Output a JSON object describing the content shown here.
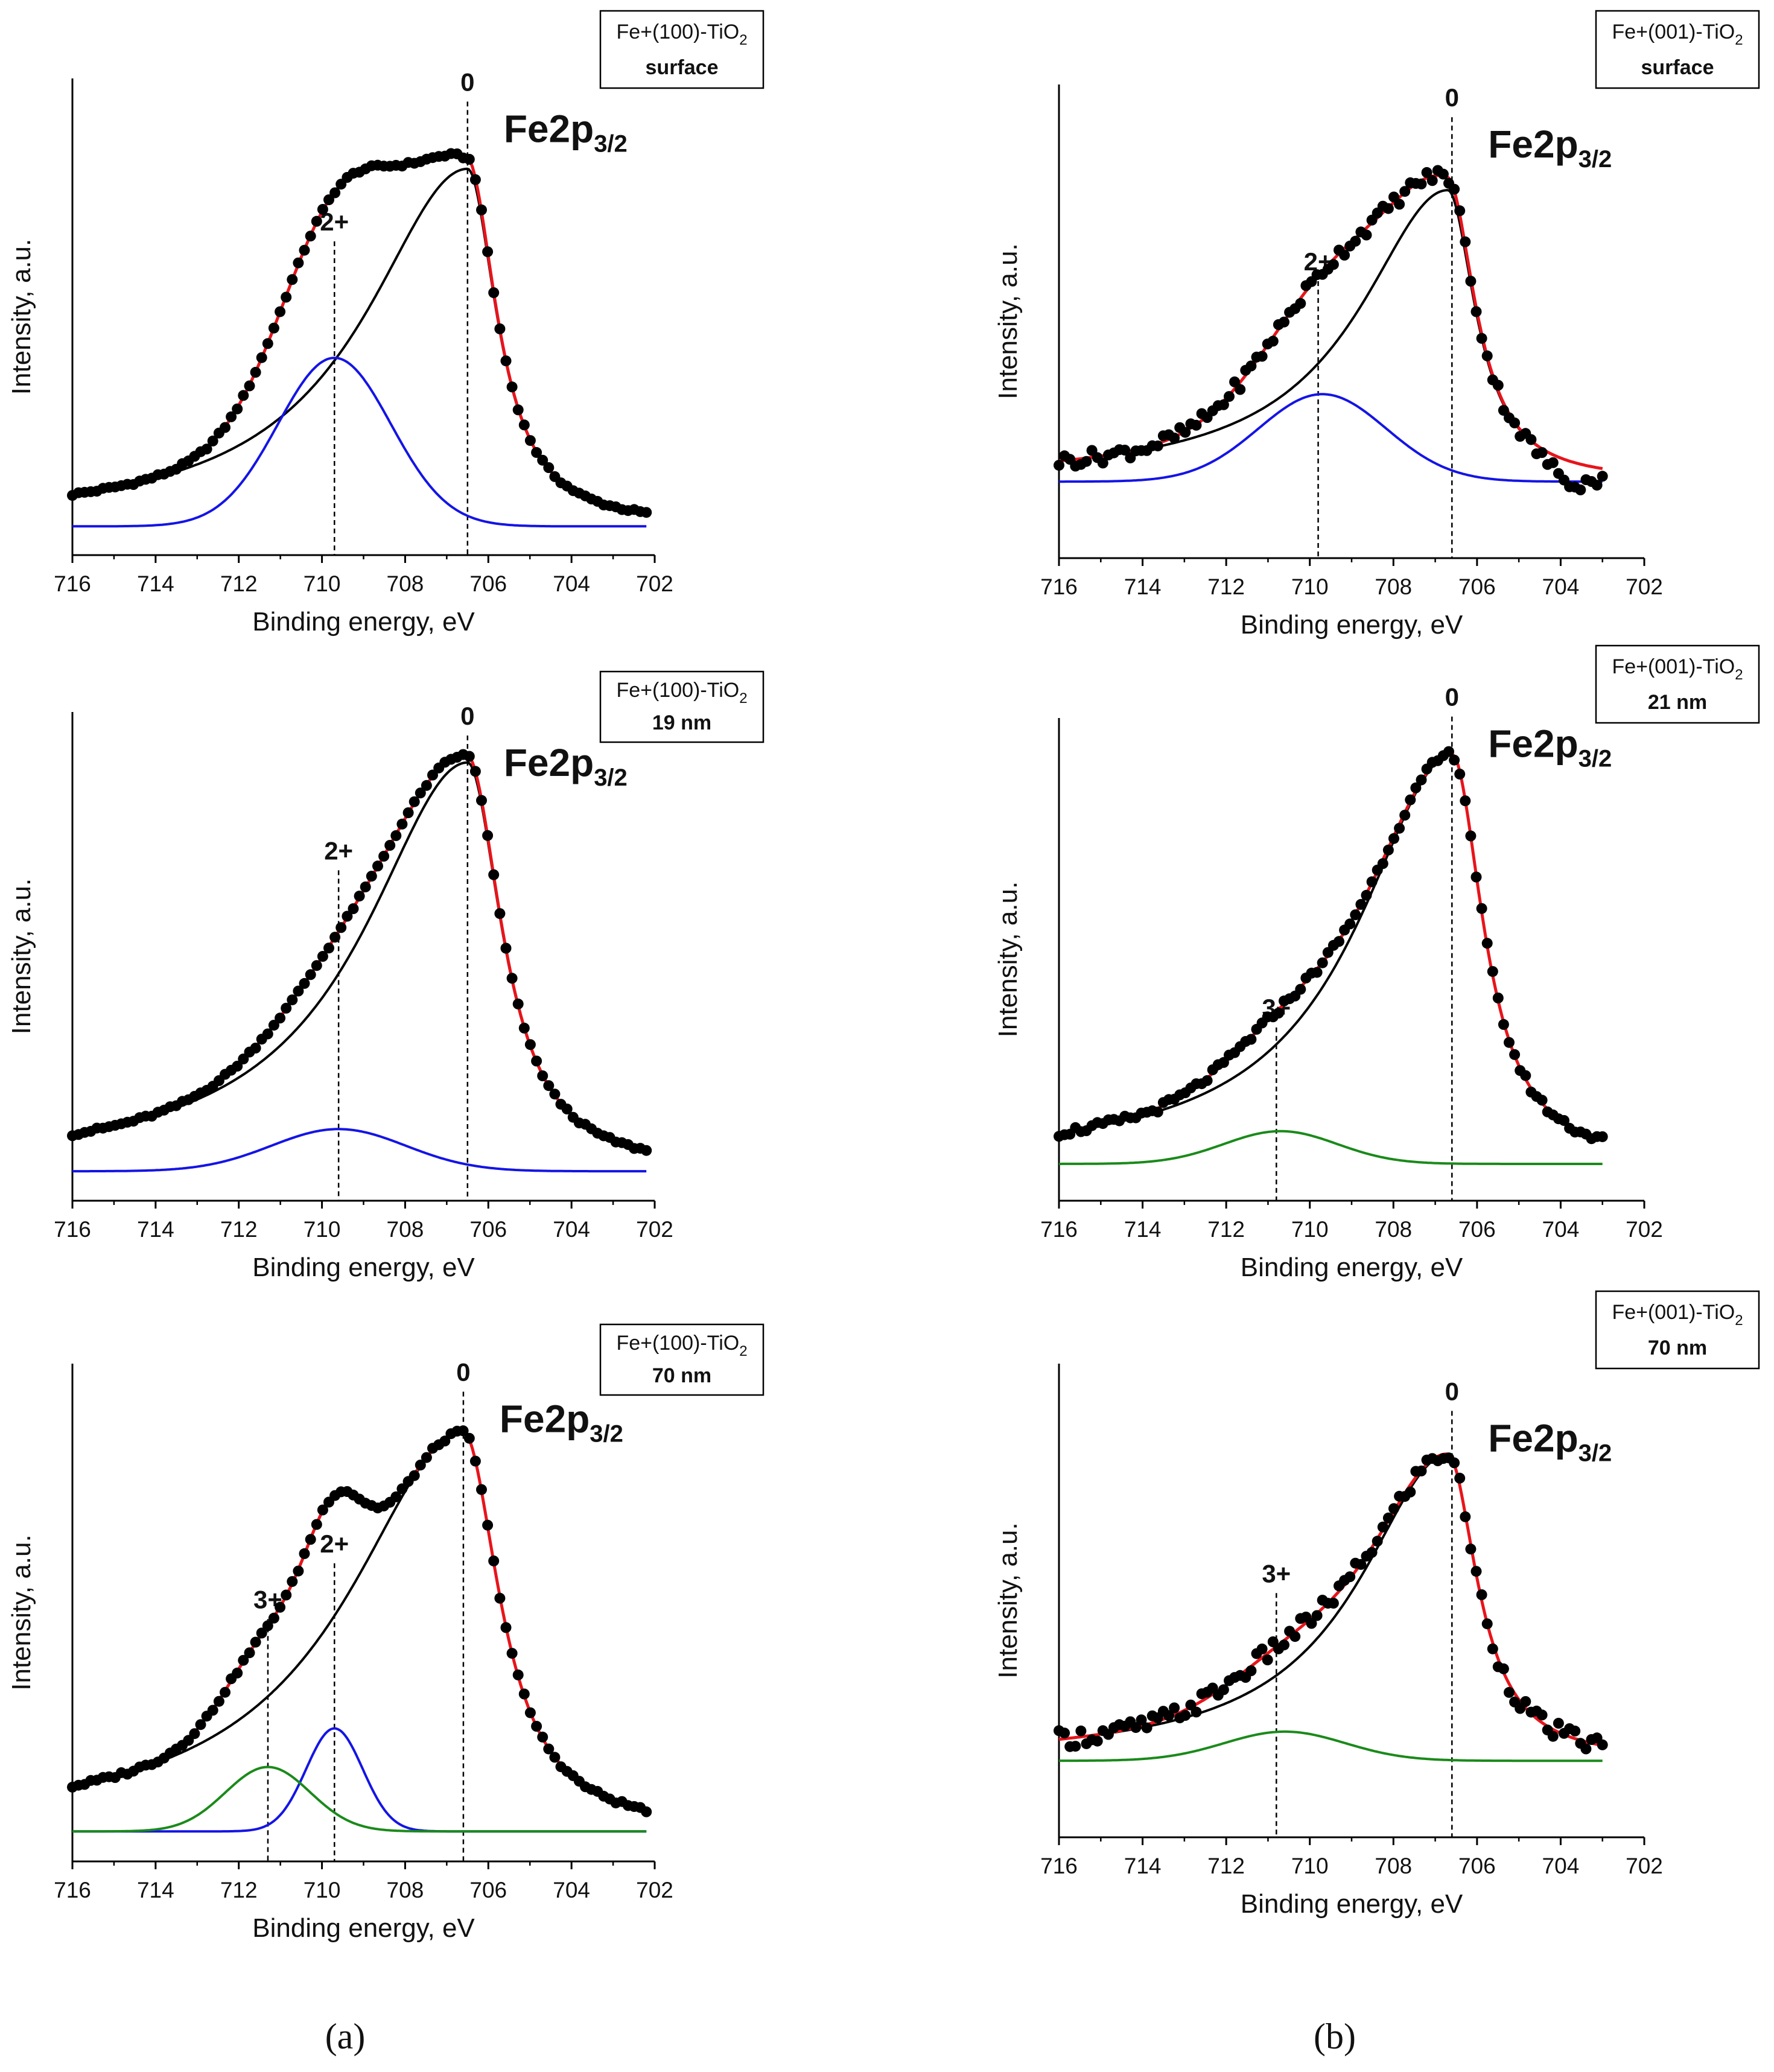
{
  "figure": {
    "captions": [
      "(a)",
      "(b)"
    ],
    "colors": {
      "data_points": "#000000",
      "envelope": "#e8141b",
      "fe0_component": "#000000",
      "fe2_component": "#1414e6",
      "fe3_component": "#1a8a1a",
      "marker_line": "#000000"
    }
  },
  "chart_data": [
    {
      "type": "scatter",
      "panel": "a",
      "sample_title": "Fe+(100)-TiO",
      "sample_sub": "2",
      "sample_condition": "surface",
      "spectrum_label": "Fe2p",
      "spectrum_sub": "3/2",
      "xlabel": "Binding energy, eV",
      "ylabel": "Intensity, a.u.",
      "xlim": [
        716,
        702
      ],
      "ylim": [
        -0.06,
        1.1
      ],
      "xticks": [
        716,
        714,
        712,
        710,
        708,
        706,
        704,
        702
      ],
      "baseline": 0.01,
      "noise": 0.004,
      "xmin_data": 716,
      "xmax_data": 702.2,
      "n_points": 95,
      "components": [
        {
          "name": "Fe0",
          "state": "0",
          "center": 706.5,
          "height": 0.87,
          "fwhm": 1.7,
          "asym_left": 3.5,
          "color": "#000000"
        },
        {
          "name": "Fe2+",
          "state": "2+",
          "center": 709.7,
          "height": 0.41,
          "fwhm": 3.2,
          "color": "#1414e6"
        }
      ],
      "markers": [
        {
          "label": "0",
          "x": 706.5,
          "label_y": 1.07
        },
        {
          "label": "2+",
          "x": 709.7,
          "label_y": 0.73
        }
      ]
    },
    {
      "type": "scatter",
      "panel": "a",
      "sample_title": "Fe+(100)-TiO",
      "sample_sub": "2",
      "sample_condition": "19 nm",
      "spectrum_label": "Fe2p",
      "spectrum_sub": "3/2",
      "xlabel": "Binding energy, eV",
      "ylabel": "Intensity, a.u.",
      "xlim": [
        716,
        702
      ],
      "ylim": [
        -0.06,
        1.1
      ],
      "xticks": [
        716,
        714,
        712,
        710,
        708,
        706,
        704,
        702
      ],
      "baseline": 0.01,
      "noise": 0.004,
      "xmin_data": 716,
      "xmax_data": 702.2,
      "n_points": 95,
      "components": [
        {
          "name": "Fe0",
          "state": "0",
          "center": 706.5,
          "height": 0.97,
          "fwhm": 2.0,
          "asym_left": 3.0,
          "color": "#000000"
        },
        {
          "name": "Fe2+",
          "state": "2+",
          "center": 709.6,
          "height": 0.1,
          "fwhm": 3.8,
          "color": "#1414e6"
        }
      ],
      "markers": [
        {
          "label": "0",
          "x": 706.5,
          "label_y": 1.07
        },
        {
          "label": "2+",
          "x": 709.6,
          "label_y": 0.75
        }
      ]
    },
    {
      "type": "scatter",
      "panel": "a",
      "sample_title": "Fe+(100)-TiO",
      "sample_sub": "2",
      "sample_condition": "70 nm",
      "spectrum_label": "Fe2p",
      "spectrum_sub": "3/2",
      "xlabel": "Binding energy, eV",
      "ylabel": "Intensity, a.u.",
      "xlim": [
        716,
        702
      ],
      "ylim": [
        -0.06,
        1.1
      ],
      "xticks": [
        716,
        714,
        712,
        710,
        708,
        706,
        704,
        702
      ],
      "baseline": 0.01,
      "noise": 0.005,
      "xmin_data": 716,
      "xmax_data": 702.2,
      "n_points": 95,
      "components": [
        {
          "name": "Fe0",
          "state": "0",
          "center": 706.6,
          "height": 0.93,
          "fwhm": 2.1,
          "asym_left": 3.2,
          "color": "#000000"
        },
        {
          "name": "Fe2+",
          "state": "2+",
          "center": 709.7,
          "height": 0.24,
          "fwhm": 1.6,
          "color": "#1414e6"
        },
        {
          "name": "Fe3+",
          "state": "3+",
          "center": 711.3,
          "height": 0.15,
          "fwhm": 2.4,
          "color": "#1a8a1a"
        }
      ],
      "markers": [
        {
          "label": "0",
          "x": 706.6,
          "label_y": 1.06
        },
        {
          "label": "2+",
          "x": 709.7,
          "label_y": 0.66
        },
        {
          "label": "3+",
          "x": 711.3,
          "label_y": 0.53
        }
      ]
    },
    {
      "type": "scatter",
      "panel": "b",
      "sample_title": "Fe+(001)-TiO",
      "sample_sub": "2",
      "sample_condition": "surface",
      "spectrum_label": "Fe2p",
      "spectrum_sub": "3/2",
      "xlabel": "Binding energy, eV",
      "ylabel": "Intensity, a.u.",
      "xlim": [
        716,
        702
      ],
      "ylim": [
        -0.2,
        1.1
      ],
      "xticks": [
        716,
        714,
        712,
        710,
        708,
        706,
        704,
        702
      ],
      "baseline": 0.01,
      "noise": 0.02,
      "dip": {
        "center": 703.7,
        "depth": 0.055,
        "width": 0.55
      },
      "xmin_data": 716,
      "xmax_data": 703,
      "n_points": 100,
      "components": [
        {
          "name": "Fe0",
          "state": "0",
          "center": 706.7,
          "height": 0.8,
          "fwhm": 1.6,
          "asym_left": 3.2,
          "color": "#000000"
        },
        {
          "name": "Fe2+",
          "state": "2+",
          "center": 709.7,
          "height": 0.24,
          "fwhm": 3.6,
          "color": "#1414e6"
        }
      ],
      "markers": [
        {
          "label": "0",
          "x": 706.6,
          "label_y": 1.04
        },
        {
          "label": "2+",
          "x": 709.8,
          "label_y": 0.59
        }
      ]
    },
    {
      "type": "scatter",
      "panel": "b",
      "sample_title": "Fe+(001)-TiO",
      "sample_sub": "2",
      "sample_condition": "21 nm",
      "spectrum_label": "Fe2p",
      "spectrum_sub": "3/2",
      "xlabel": "Binding energy, eV",
      "ylabel": "Intensity, a.u.",
      "xlim": [
        716,
        702
      ],
      "ylim": [
        -0.08,
        1.1
      ],
      "xticks": [
        716,
        714,
        712,
        710,
        708,
        706,
        704,
        702
      ],
      "baseline": 0.01,
      "noise": 0.01,
      "xmin_data": 716,
      "xmax_data": 703,
      "n_points": 100,
      "components": [
        {
          "name": "Fe0",
          "state": "0",
          "center": 706.6,
          "height": 1.0,
          "fwhm": 1.8,
          "asym_left": 3.0,
          "color": "#000000"
        },
        {
          "name": "Fe3+",
          "state": "3+",
          "center": 710.7,
          "height": 0.08,
          "fwhm": 3.2,
          "color": "#1a8a1a"
        }
      ],
      "markers": [
        {
          "label": "0",
          "x": 706.6,
          "label_y": 1.13
        },
        {
          "label": "3+",
          "x": 710.8,
          "label_y": 0.37
        }
      ]
    },
    {
      "type": "scatter",
      "panel": "b",
      "sample_title": "Fe+(001)-TiO",
      "sample_sub": "2",
      "sample_condition": "70 nm",
      "spectrum_label": "Fe2p",
      "spectrum_sub": "3/2",
      "xlabel": "Binding energy, eV",
      "ylabel": "Intensity, a.u.",
      "xlim": [
        716,
        702
      ],
      "ylim": [
        -0.2,
        1.1
      ],
      "xticks": [
        716,
        714,
        712,
        710,
        708,
        706,
        704,
        702
      ],
      "baseline": 0.01,
      "noise": 0.025,
      "xmin_data": 716,
      "xmax_data": 703,
      "n_points": 100,
      "components": [
        {
          "name": "Fe0",
          "state": "0",
          "center": 706.7,
          "height": 0.84,
          "fwhm": 1.7,
          "asym_left": 3.0,
          "color": "#000000"
        },
        {
          "name": "Fe3+",
          "state": "3+",
          "center": 710.6,
          "height": 0.08,
          "fwhm": 3.4,
          "color": "#1a8a1a"
        }
      ],
      "markers": [
        {
          "label": "0",
          "x": 706.6,
          "label_y": 1.0
        },
        {
          "label": "3+",
          "x": 710.8,
          "label_y": 0.5
        }
      ]
    }
  ]
}
